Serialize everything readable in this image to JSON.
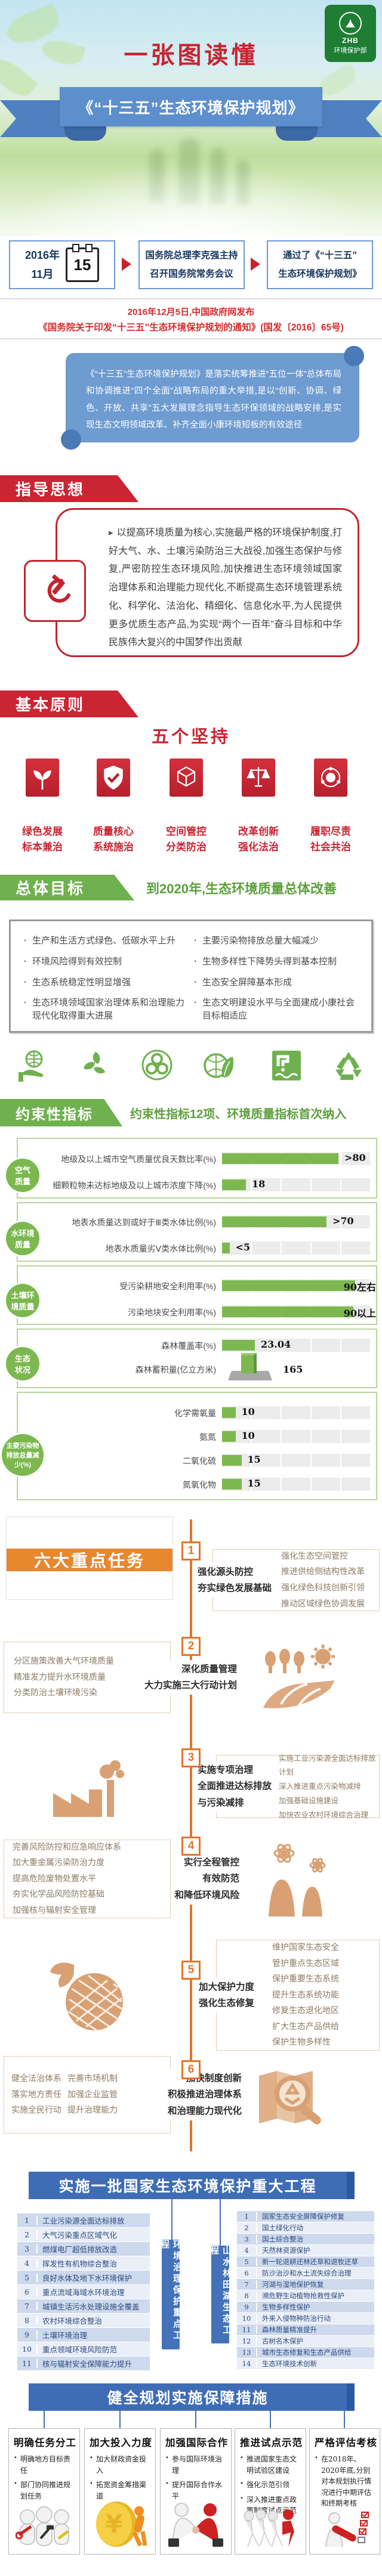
{
  "page": {
    "title_line": "一张图读懂",
    "banner_title": "《“十三五”生态环境保护规划》"
  },
  "logo": {
    "abbr": "ZHB",
    "name": "环境保护部"
  },
  "meeting": {
    "date_year": "2016年",
    "date_month": "11月",
    "date_day": "15",
    "box2_line1": "国务院总理李克强主持",
    "box2_line2": "召开国务院常务会议",
    "box3_line1": "通过了《“十三五”",
    "box3_line2": "生态环境保护规划》"
  },
  "notice": {
    "line1": "2016年12月5日,中国政府网发布",
    "line2": "《国务院关于印发“十三五”生态环境保护规划的通知》(国发〔2016〕65号)"
  },
  "scroll_text": "《“十三五”生态环境保护规划》是落实统筹推进“五位一体”总体布局和协调推进“四个全面”战略布局的重大举措,是以“创新、协调、绿色、开放、共享”五大发展理念指导生态环保领域的战略安排,是实现生态文明领域改革、补齐全面小康环境短板的有效途径",
  "guiding": {
    "header": "指导思想",
    "text": "以提高环境质量为核心,实施最严格的环境保护制度,打好大气、水、土壤污染防治三大战役,加强生态保护与修复,严密防控生态环境风险,加快推进生态环境领域国家治理体系和治理能力现代化,不断提高生态环境管理系统化、科学化、法治化、精细化、信息化水平,为人民提供更多优质生态产品,为实现“两个一百年”奋斗目标和中华民族伟大复兴的中国梦作出贡献"
  },
  "principles": {
    "header": "基本原则",
    "title": "五个坚持",
    "items": [
      {
        "icon": "sprout-icon",
        "label1": "绿色发展",
        "label2": "标本兼治"
      },
      {
        "icon": "shield-check-icon",
        "label1": "质量核心",
        "label2": "系统施治"
      },
      {
        "icon": "cube-icon",
        "label1": "空间管控",
        "label2": "分类防治"
      },
      {
        "icon": "scales-icon",
        "label1": "改革创新",
        "label2": "强化法治"
      },
      {
        "icon": "orbit-icon",
        "label1": "履职尽责",
        "label2": "社会共治"
      }
    ]
  },
  "goal": {
    "header": "总体目标",
    "headline": "到2020年,生态环境质量总体改善",
    "bullets_left": [
      "生产和生活方式绿色、低碳水平上升",
      "环境风险得到有效控制",
      "生态系统稳定性明显增强",
      "生态环境领域国家治理体系和治理能力现代化取得重大进展"
    ],
    "bullets_right": [
      "主要污染物排放总量大幅减少",
      "生物多样性下降势头得到基本控制",
      "生态安全屏障基本形成",
      "生态文明建设水平与全面建成小康社会目标相适应"
    ]
  },
  "eco_icons": [
    "hand-globe-icon",
    "leaf-recycle-icon",
    "biohazard-icon",
    "leaf-globe-icon",
    "clean-water-icon",
    "recycle-arrows-icon"
  ],
  "indicators": {
    "header": "约束性指标",
    "headline": "约束性指标12项、环境质量指标首次纳入"
  },
  "chart_data": {
    "type": "bar",
    "orientation": "horizontal",
    "title": "约束性指标12项、环境质量指标首次纳入",
    "groups": [
      {
        "category": "空气\n质量",
        "rows": [
          {
            "label": "地级及以上城市空气质量优良天数比率(%)",
            "value": ">80",
            "pct": 78
          },
          {
            "label": "细颗粒物未达标地级及以上城市浓度下降(%)",
            "value": "18",
            "pct": 16
          }
        ]
      },
      {
        "category": "水环境\n质量",
        "rows": [
          {
            "label": "地表水质量达到或好于Ⅲ类水体比例(%)",
            "value": ">70",
            "pct": 70
          },
          {
            "label": "地表水质量劣Ⅴ类水体比例(%)",
            "value": "<5",
            "pct": 5
          }
        ]
      },
      {
        "category": "土壤环\n境质量",
        "rows": [
          {
            "label": "受污染耕地安全利用率(%)",
            "value": "90左右",
            "pct": 89
          },
          {
            "label": "污染地块安全利用率(%)",
            "value": "90以上",
            "pct": 88
          }
        ]
      },
      {
        "category": "生态\n状况",
        "rows": [
          {
            "label": "森林覆盖率(%)",
            "value": "23.04",
            "pct": 22
          },
          {
            "label": "森林蓄积量(亿立方米)",
            "value": "165",
            "podium": true
          }
        ]
      },
      {
        "category": "主要污染物\n排放总量减\n少(%)",
        "rows": [
          {
            "label": "化学需氧量",
            "value": "10",
            "pct": 9
          },
          {
            "label": "氨氮",
            "value": "10",
            "pct": 9
          },
          {
            "label": "二氧化硫",
            "value": "15",
            "pct": 13
          },
          {
            "label": "氮氧化物",
            "value": "15",
            "pct": 13
          }
        ]
      }
    ]
  },
  "tasks": {
    "banner": "六大重点任务",
    "items": [
      {
        "num": "1",
        "title": [
          "强化源头防控",
          "夯实绿色发展基础"
        ],
        "points": [
          "强化生态空间管控",
          "推进供给侧结构性改革",
          "强化绿色科技创新引领",
          "推动区域绿色协调发展"
        ]
      },
      {
        "num": "2",
        "title": [
          "深化质量管理",
          "大力实施三大行动计划"
        ],
        "points": [
          "分区施策改善大气环境质量",
          "精准发力提升水环境质量",
          "分类防治土壤环境污染"
        ],
        "icon": "farm-field-icon"
      },
      {
        "num": "3",
        "title": [
          "实施专项治理",
          "全面推进达标排放",
          "与污染减排"
        ],
        "points": [
          "实施工业污染源全面达标排放计划",
          "深入推进重点污染物减排",
          "加强基础设施建设",
          "加快农业农村环境综合治理"
        ],
        "icon": "factory-icon"
      },
      {
        "num": "4",
        "title": [
          "实行全程管控",
          "有效防范",
          "和降低环境风险"
        ],
        "points": [
          "完善风险防控和应急响应体系",
          "加大重金属污染防治力度",
          "提高危险废物处置水平",
          "夯实化学品风险防控基础",
          "加强核与辐射安全管理"
        ],
        "icon": "nuclear-plant-icon"
      },
      {
        "num": "5",
        "title": [
          "加大保护力度",
          "强化生态修复"
        ],
        "points": [
          "维护国家生态安全",
          "管护重点生态区域",
          "保护重要生态系统",
          "提升生态系统功能",
          "修复生态退化地区",
          "扩大生态产品供给",
          "保护生物多样性"
        ],
        "icon": "butterfly-fruit-icon"
      },
      {
        "num": "6",
        "title": [
          "加快制度创新",
          "积极推进治理体系",
          "和治理能力现代化"
        ],
        "points_col1": [
          "健全法治体系",
          "落实地方责任",
          "实施全民行动"
        ],
        "points_col2": [
          "完善市场机制",
          "加强企业监管",
          "提升治理能力"
        ],
        "icon": "map-magnifier-icon"
      }
    ]
  },
  "projects": {
    "banner": "实施一批国家生态环境保护重大工程",
    "left_title": "环境治理保护重点工程",
    "left_rows": [
      "工业污染源全面达标排放",
      "大气污染重点区域气化",
      "燃煤电厂超低排放改造",
      "挥发性有机物综合整治",
      "良好水体及地下水环境保护",
      "重点流域海域水环境治理",
      "城镇生活污水处理设施全覆盖",
      "农村环境综合整治",
      "土壤环境治理",
      "重点领域环境风险防范",
      "核与辐射安全保障能力提升"
    ],
    "right_title": "山水林田湖生态工程",
    "right_rows": [
      "国家生态安全屏障保护修复",
      "国土绿化行动",
      "国土综合整治",
      "天然林资源保护",
      "新一轮退耕还林还草和退牧还草",
      "防沙治沙和水土流失综合治理",
      "河湖与湿地保护恢复",
      "濒危野生动植物抢救性保护",
      "生物多样性保护",
      "外来入侵物种防治行动",
      "森林质量精准提升",
      "古树名木保护",
      "城市生态修复和生态产品供给",
      "生态环境技术创新"
    ]
  },
  "safeguards": {
    "banner": "健全规划实施保障措施",
    "cards": [
      {
        "title": "明确任务分工",
        "icon": "workers-tools-icon",
        "points": [
          "明确地方目标责任",
          "部门协同推进规划任务"
        ]
      },
      {
        "title": "加大投入力度",
        "icon": "coin-yuan-icon",
        "points": [
          "加大财政资金投入",
          "拓宽资金筹措渠道"
        ]
      },
      {
        "title": "加强国际合作",
        "icon": "handshake-icon",
        "points": [
          "参与国际环境治理",
          "提升国际合作水平"
        ]
      },
      {
        "title": "推进试点示范",
        "icon": "running-figures-icon",
        "points": [
          "推进国家生态文明试验区建设",
          "强化示范引领",
          "深入推进重点政策制度试点示范"
        ]
      },
      {
        "title": "严格评估考核",
        "icon": "checklist-pen-icon",
        "points": [
          "在2018年、2020年底,分别对本规划执行情况进行中期评估和终期考核"
        ]
      }
    ]
  }
}
